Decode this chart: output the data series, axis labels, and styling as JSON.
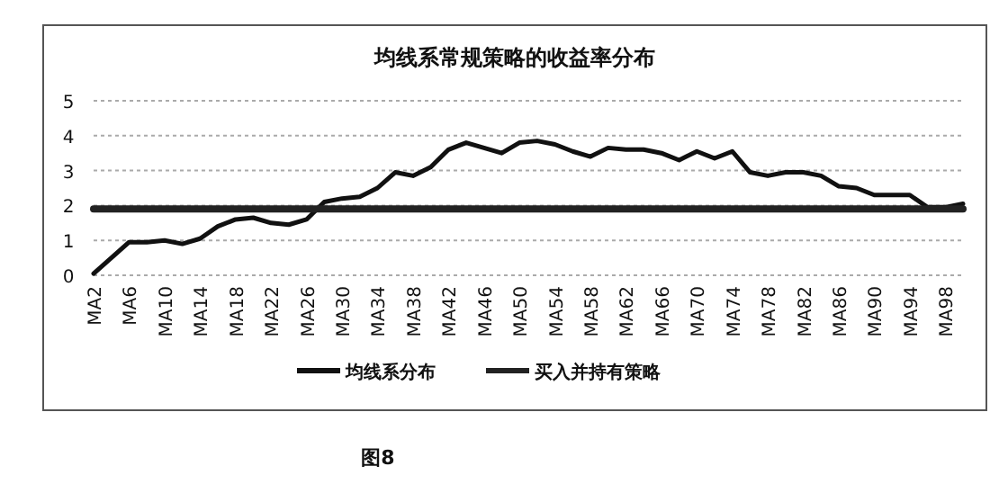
{
  "chart_data": {
    "type": "line",
    "title": "均线系常规策略的收益率分布",
    "categories": [
      "MA2",
      null,
      "MA6",
      null,
      "MA10",
      null,
      "MA14",
      null,
      "MA18",
      null,
      "MA22",
      null,
      "MA26",
      null,
      "MA30",
      null,
      "MA34",
      null,
      "MA38",
      null,
      "MA42",
      null,
      "MA46",
      null,
      "MA50",
      null,
      "MA54",
      null,
      "MA58",
      null,
      "MA62",
      null,
      "MA66",
      null,
      "MA70",
      null,
      "MA74",
      null,
      "MA78",
      null,
      "MA82",
      null,
      "MA86",
      null,
      "MA90",
      null,
      "MA94",
      null,
      "MA98",
      null
    ],
    "series": [
      {
        "name": "均线系分布",
        "color": "#111111",
        "values": [
          0.05,
          0.5,
          0.95,
          0.95,
          1.0,
          0.9,
          1.05,
          1.4,
          1.6,
          1.65,
          1.5,
          1.45,
          1.6,
          2.1,
          2.2,
          2.25,
          2.5,
          2.95,
          2.85,
          3.1,
          3.6,
          3.8,
          3.65,
          3.5,
          3.8,
          3.85,
          3.75,
          3.55,
          3.4,
          3.65,
          3.6,
          3.6,
          3.5,
          3.3,
          3.55,
          3.35,
          3.55,
          2.95,
          2.85,
          2.95,
          2.95,
          2.85,
          2.55,
          2.5,
          2.3,
          2.3,
          2.3,
          1.95,
          1.95,
          2.05
        ]
      },
      {
        "name": "买入并持有策略",
        "color": "#222222",
        "values": [
          1.9,
          1.9,
          1.9,
          1.9,
          1.9,
          1.9,
          1.9,
          1.9,
          1.9,
          1.9,
          1.9,
          1.9,
          1.9,
          1.9,
          1.9,
          1.9,
          1.9,
          1.9,
          1.9,
          1.9,
          1.9,
          1.9,
          1.9,
          1.9,
          1.9,
          1.9,
          1.9,
          1.9,
          1.9,
          1.9,
          1.9,
          1.9,
          1.9,
          1.9,
          1.9,
          1.9,
          1.9,
          1.9,
          1.9,
          1.9,
          1.9,
          1.9,
          1.9,
          1.9,
          1.9,
          1.9,
          1.9,
          1.9,
          1.9,
          1.9
        ]
      }
    ],
    "ylim": [
      0,
      5
    ],
    "yticks": [
      0,
      1,
      2,
      3,
      4,
      5
    ],
    "grid": "y",
    "legend": "bottom",
    "line_style": "solid",
    "annotations": [
      "图8"
    ]
  }
}
